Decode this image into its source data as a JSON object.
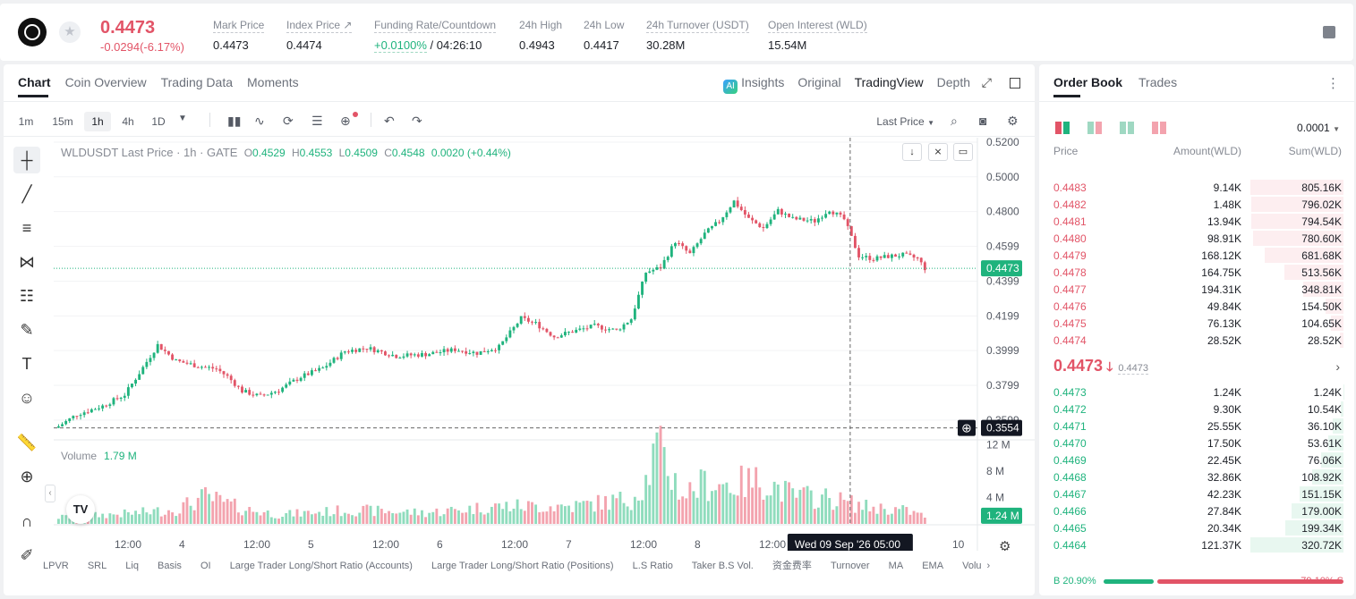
{
  "header": {
    "last_price": "0.4473",
    "change": "-0.0294(-6.17%)",
    "stats": [
      {
        "label": "Mark Price",
        "value": "0.4473"
      },
      {
        "label": "Index Price ↗",
        "value": "0.4474"
      },
      {
        "label": "Funding Rate/Countdown",
        "value_rate": "+0.0100%",
        "value_countdown": "/ 04:26:10"
      },
      {
        "label": "24h High",
        "value": "0.4943"
      },
      {
        "label": "24h Low",
        "value": "0.4417"
      },
      {
        "label": "24h Turnover (USDT)",
        "value": "30.28M"
      },
      {
        "label": "Open Interest (WLD)",
        "value": "15.54M"
      }
    ]
  },
  "chart_tabs": [
    "Chart",
    "Coin Overview",
    "Trading Data",
    "Moments"
  ],
  "view_tabs": {
    "insights": "Insights",
    "original": "Original",
    "tradingview": "TradingView",
    "depth": "Depth"
  },
  "timeframes": [
    "1m",
    "15m",
    "1h",
    "4h",
    "1D"
  ],
  "price_source": "Last Price",
  "legend": {
    "title": "WLDUSDT Last Price · 1h · GATE",
    "o_label": "O",
    "o": "0.4529",
    "h_label": "H",
    "h": "0.4553",
    "l_label": "L",
    "l": "0.4509",
    "c_label": "C",
    "c": "0.4548",
    "chg": "0.0020 (+0.44%)"
  },
  "volume_legend": {
    "label": "Volume",
    "value": "1.79 M"
  },
  "current_price_tag": "0.4473",
  "crosshair_price_tag": "0.3554",
  "volume_tag": "1.24 M",
  "crosshair_time": "Wed 09 Sep '26   05:00",
  "bottom_indicators": [
    "LPVR",
    "SRL",
    "Liq",
    "Basis",
    "OI",
    "Large Trader Long/Short Ratio (Accounts)",
    "Large Trader Long/Short Ratio (Positions)",
    "L.S Ratio",
    "Taker B.S Vol.",
    "资金费率",
    "Turnover",
    "MA",
    "EMA",
    "Volu"
  ],
  "colors": {
    "up": "#1fb37d",
    "down": "#e25467",
    "up_vol": "#8fdcbd",
    "down_vol": "#f3a3ae"
  },
  "chart_data": {
    "type": "candlestick",
    "interval": "1h",
    "price_axis_ticks": [
      "0.5200",
      "0.5000",
      "0.4800",
      "0.4599",
      "0.4399",
      "0.4199",
      "0.3999",
      "0.3799",
      "0.3599"
    ],
    "ylim": [
      0.3557,
      0.5205
    ],
    "volume_axis_ticks": [
      "12 M",
      "8 M",
      "4 M"
    ],
    "volume_ylim": [
      0,
      12500000
    ],
    "time_axis_ticks": [
      "12:00",
      "4",
      "12:00",
      "5",
      "12:00",
      "6",
      "12:00",
      "7",
      "12:00",
      "8",
      "12:00",
      "10"
    ],
    "close_anchors": [
      [
        0,
        0.3563
      ],
      [
        5,
        0.3632
      ],
      [
        12,
        0.368
      ],
      [
        18,
        0.3745
      ],
      [
        22,
        0.387
      ],
      [
        27,
        0.4032
      ],
      [
        32,
        0.394
      ],
      [
        38,
        0.391
      ],
      [
        43,
        0.3894
      ],
      [
        46,
        0.385
      ],
      [
        50,
        0.3766
      ],
      [
        55,
        0.3735
      ],
      [
        60,
        0.3772
      ],
      [
        66,
        0.3848
      ],
      [
        72,
        0.3898
      ],
      [
        78,
        0.3995
      ],
      [
        84,
        0.4015
      ],
      [
        92,
        0.3968
      ],
      [
        100,
        0.3978
      ],
      [
        108,
        0.4005
      ],
      [
        114,
        0.3985
      ],
      [
        120,
        0.402
      ],
      [
        126,
        0.4185
      ],
      [
        130,
        0.4155
      ],
      [
        135,
        0.408
      ],
      [
        140,
        0.411
      ],
      [
        146,
        0.414
      ],
      [
        152,
        0.4115
      ],
      [
        156,
        0.4182
      ],
      [
        160,
        0.445
      ],
      [
        164,
        0.4478
      ],
      [
        168,
        0.4628
      ],
      [
        172,
        0.4555
      ],
      [
        176,
        0.4672
      ],
      [
        180,
        0.4745
      ],
      [
        184,
        0.486
      ],
      [
        188,
        0.4758
      ],
      [
        192,
        0.4705
      ],
      [
        196,
        0.4805
      ],
      [
        200,
        0.4758
      ],
      [
        206,
        0.4745
      ],
      [
        210,
        0.4812
      ],
      [
        214,
        0.4755
      ],
      [
        218,
        0.4545
      ],
      [
        222,
        0.4528
      ],
      [
        226,
        0.4542
      ],
      [
        230,
        0.455
      ],
      [
        234,
        0.453
      ],
      [
        236,
        0.4473
      ]
    ],
    "volume_anchors": [
      [
        0,
        1.0
      ],
      [
        20,
        1.6
      ],
      [
        32,
        2.2
      ],
      [
        40,
        4.1
      ],
      [
        50,
        2.3
      ],
      [
        60,
        1.4
      ],
      [
        80,
        2.1
      ],
      [
        100,
        1.7
      ],
      [
        120,
        2.7
      ],
      [
        140,
        2.7
      ],
      [
        156,
        3.8
      ],
      [
        160,
        6.6
      ],
      [
        163,
        11.5
      ],
      [
        170,
        4.5
      ],
      [
        176,
        6.2
      ],
      [
        184,
        6.0
      ],
      [
        192,
        6.6
      ],
      [
        200,
        4.3
      ],
      [
        210,
        3.9
      ],
      [
        220,
        2.6
      ],
      [
        230,
        2.1
      ],
      [
        236,
        1.2
      ]
    ]
  },
  "orderbook": {
    "tabs": [
      "Order Book",
      "Trades"
    ],
    "precision": "0.0001",
    "headers": {
      "price": "Price",
      "amount": "Amount(WLD)",
      "sum": "Sum(WLD)"
    },
    "asks": [
      {
        "price": "0.4483",
        "amount": "9.14K",
        "sum": "805.16K",
        "depth": 1.0
      },
      {
        "price": "0.4482",
        "amount": "1.48K",
        "sum": "796.02K",
        "depth": 0.989
      },
      {
        "price": "0.4481",
        "amount": "13.94K",
        "sum": "794.54K",
        "depth": 0.987
      },
      {
        "price": "0.4480",
        "amount": "98.91K",
        "sum": "780.60K",
        "depth": 0.969
      },
      {
        "price": "0.4479",
        "amount": "168.12K",
        "sum": "681.68K",
        "depth": 0.847
      },
      {
        "price": "0.4478",
        "amount": "164.75K",
        "sum": "513.56K",
        "depth": 0.638
      },
      {
        "price": "0.4477",
        "amount": "194.31K",
        "sum": "348.81K",
        "depth": 0.433
      },
      {
        "price": "0.4476",
        "amount": "49.84K",
        "sum": "154.50K",
        "depth": 0.192
      },
      {
        "price": "0.4475",
        "amount": "76.13K",
        "sum": "104.65K",
        "depth": 0.13
      },
      {
        "price": "0.4474",
        "amount": "28.52K",
        "sum": "28.52K",
        "depth": 0.035
      }
    ],
    "mid_price": "0.4473",
    "mid_arrow": "🡓",
    "mid_mark": "0.4473",
    "bids": [
      {
        "price": "0.4473",
        "amount": "1.24K",
        "sum": "1.24K",
        "depth": 0.004
      },
      {
        "price": "0.4472",
        "amount": "9.30K",
        "sum": "10.54K",
        "depth": 0.033
      },
      {
        "price": "0.4471",
        "amount": "25.55K",
        "sum": "36.10K",
        "depth": 0.113
      },
      {
        "price": "0.4470",
        "amount": "17.50K",
        "sum": "53.61K",
        "depth": 0.167
      },
      {
        "price": "0.4469",
        "amount": "22.45K",
        "sum": "76.06K",
        "depth": 0.237
      },
      {
        "price": "0.4468",
        "amount": "32.86K",
        "sum": "108.92K",
        "depth": 0.34
      },
      {
        "price": "0.4467",
        "amount": "42.23K",
        "sum": "151.15K",
        "depth": 0.471
      },
      {
        "price": "0.4466",
        "amount": "27.84K",
        "sum": "179.00K",
        "depth": 0.558
      },
      {
        "price": "0.4465",
        "amount": "20.34K",
        "sum": "199.34K",
        "depth": 0.622
      },
      {
        "price": "0.4464",
        "amount": "121.37K",
        "sum": "320.72K",
        "depth": 1.0
      }
    ],
    "buy_ratio": "B 20.90%",
    "sell_ratio": "79.10% S",
    "buy_fraction": 0.209
  }
}
